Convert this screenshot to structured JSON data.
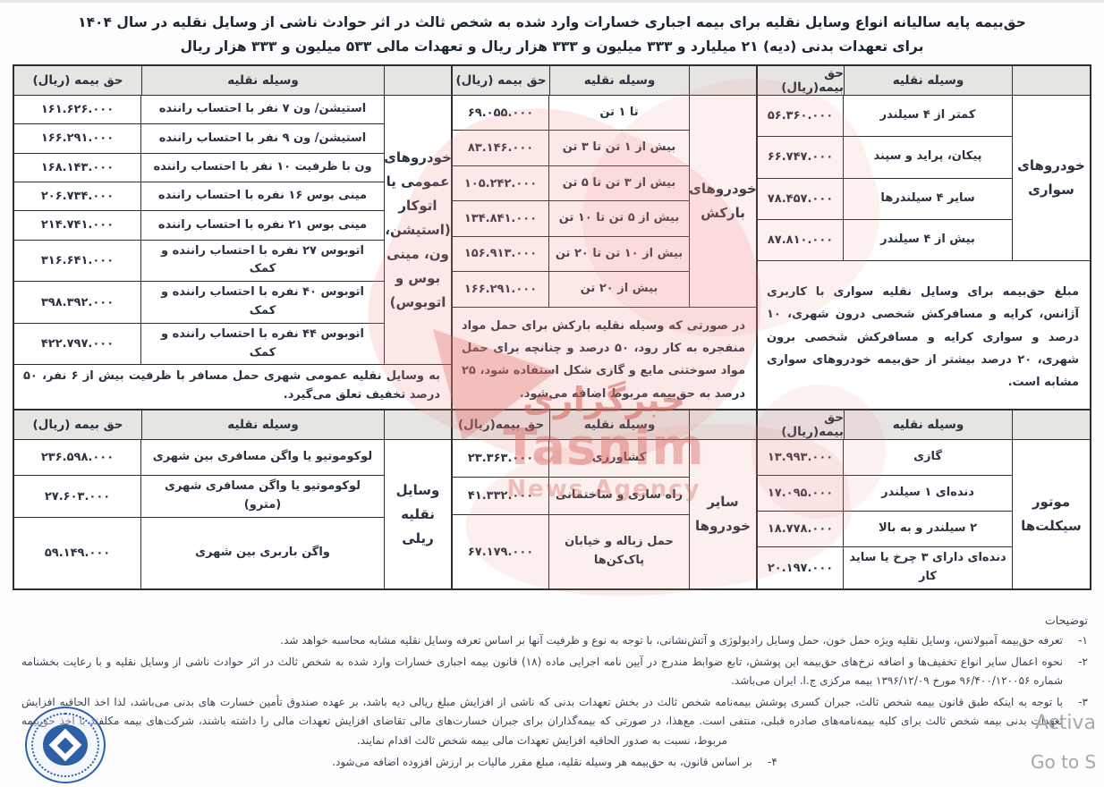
{
  "title": {
    "line1": "حق‌بیمه پایه سالیانه انواع وسایل نقلیه برای بیمه اجباری خسارات وارد شده به شخص ثالث در اثر حوادث ناشی از وسایل نقلیه در سال ۱۴۰۴",
    "line2": "برای تعهدات بدنی (دیه) ۲۱ میلیارد و ۳۳۳ میلیون و ۳۳۳ هزار ریال و تعهدات مالی ۵۳۳ میلیون و ۳۳۳ هزار ریال"
  },
  "table": {
    "upper": {
      "groups": [
        {
          "label": "خودروهای سواری",
          "vehicle_header": "وسیله نقلیه",
          "premium_header": "حق بیمه(ریال)",
          "rows": [
            {
              "vehicle": "کمتر از ۴ سیلندر",
              "premium": "۵۶.۳۶۰.۰۰۰"
            },
            {
              "vehicle": "پیکان، پراید و سپند",
              "premium": "۶۶.۷۴۷.۰۰۰"
            },
            {
              "vehicle": "سایر ۴ سیلندرها",
              "premium": "۷۸.۴۵۷.۰۰۰"
            },
            {
              "vehicle": "بیش از ۴ سیلندر",
              "premium": "۸۷.۸۱۰.۰۰۰"
            }
          ],
          "note": "مبلغ حق‌بیمه برای وسایل نقلیه سواری با کاربری آژانس، کرایه و مسافرکش شخصی درون شهری، ۱۰ درصد و سواری کرایه و مسافرکش شخصی برون شهری، ۲۰ درصد بیشتر از حق‌بیمه خودروهای سواری مشابه است."
        },
        {
          "label": "خودروهای بارکش",
          "vehicle_header": "وسیله نقلیه",
          "premium_header": "حق بیمه (ریال)",
          "rows": [
            {
              "vehicle": "تا ۱ تن",
              "premium": "۶۹.۰۵۵.۰۰۰"
            },
            {
              "vehicle": "بیش از ۱ تن تا ۳ تن",
              "premium": "۸۳.۱۴۶.۰۰۰"
            },
            {
              "vehicle": "بیش از ۳ تن تا ۵ تن",
              "premium": "۱۰۵.۲۴۲.۰۰۰"
            },
            {
              "vehicle": "بیش از ۵ تن تا ۱۰ تن",
              "premium": "۱۳۴.۸۴۱.۰۰۰"
            },
            {
              "vehicle": "بیش از ۱۰ تن تا ۲۰ تن",
              "premium": "۱۵۶.۹۱۳.۰۰۰"
            },
            {
              "vehicle": "بیش از ۲۰ تن",
              "premium": "۱۶۶.۲۹۱.۰۰۰"
            }
          ],
          "note": "در صورتی که وسیله نقلیه بارکش برای حمل مواد منفجره به کار رود، ۵۰ درصد و چنانچه برای حمل مواد سوختنی مایع و گازی شکل استفاده شود، ۲۵ درصد به حق‌بیمه مربوط اضافه می‌شود."
        },
        {
          "label": "خودروهای عمومی یا اتوکار (استیشن، ون، مینی بوس و اتوبوس)",
          "vehicle_header": "وسیله نقلیه",
          "premium_header": "حق بیمه (ریال)",
          "rows": [
            {
              "vehicle": "استیشن/ ون ۷ نفر با احتساب راننده",
              "premium": "۱۶۱.۶۲۶.۰۰۰"
            },
            {
              "vehicle": "استیشن/ ون ۹ نفر با احتساب راننده",
              "premium": "۱۶۶.۲۹۱.۰۰۰"
            },
            {
              "vehicle": "ون با ظرفیت ۱۰ نفر با احتساب راننده",
              "premium": "۱۶۸.۱۴۳.۰۰۰"
            },
            {
              "vehicle": "مینی بوس ۱۶ نفره با احتساب راننده",
              "premium": "۲۰۶.۷۳۴.۰۰۰"
            },
            {
              "vehicle": "مینی بوس ۲۱ نفره با احتساب راننده",
              "premium": "۲۱۴.۷۴۱.۰۰۰"
            },
            {
              "vehicle": "اتوبوس ۲۷ نفره با احتساب راننده و کمک",
              "premium": "۳۱۶.۶۴۱.۰۰۰"
            },
            {
              "vehicle": "اتوبوس ۴۰ نفره با احتساب راننده و کمک",
              "premium": "۳۹۸.۳۹۲.۰۰۰"
            },
            {
              "vehicle": "اتوبوس ۴۴ نفره با احتساب راننده و کمک",
              "premium": "۴۲۲.۷۹۷.۰۰۰"
            }
          ],
          "note": "به وسایل نقلیه عمومی شهری حمل مسافر با ظرفیت بیش از ۶ نفر، ۵۰ درصد تخفیف تعلق می‌گیرد."
        }
      ]
    },
    "lower": {
      "groups": [
        {
          "label": "موتور سیکلت‌ها",
          "vehicle_header": "وسیله نقلیه",
          "premium_header": "حق بیمه(ریال)",
          "rows": [
            {
              "vehicle": "گازی",
              "premium": "۱۳.۹۹۳.۰۰۰"
            },
            {
              "vehicle": "دنده‌ای ۱ سیلندر",
              "premium": "۱۷.۰۹۵.۰۰۰"
            },
            {
              "vehicle": "۲ سیلندر و به بالا",
              "premium": "۱۸.۷۷۸.۰۰۰"
            },
            {
              "vehicle": "دنده‌ای دارای ۳ چرخ یا ساید کار",
              "premium": "۲۰.۱۹۷.۰۰۰"
            }
          ]
        },
        {
          "label": "سایر خودروها",
          "vehicle_header": "وسیله نقلیه",
          "premium_header": "حق بیمه(ریال)",
          "rows": [
            {
              "vehicle": "کشاورزی",
              "premium": "۲۳.۳۶۳.۰۰۰"
            },
            {
              "vehicle": "راه سازی و ساختمانی",
              "premium": "۴۱.۳۳۲.۰۰۰"
            },
            {
              "vehicle": "حمل زباله و خیابان پاک‌کن‌ها",
              "premium": "۶۷.۱۷۹.۰۰۰"
            }
          ]
        },
        {
          "label": "وسایل نقلیه ریلی",
          "vehicle_header": "وسیله نقلیه",
          "premium_header": "حق بیمه (ریال)",
          "rows": [
            {
              "vehicle": "لوکوموتیو یا واگن مسافری بین شهری",
              "premium": "۲۳۶.۵۹۸.۰۰۰"
            },
            {
              "vehicle": "لوکوموتیو یا واگن مسافری شهری (مترو)",
              "premium": "۲۷.۶۰۳.۰۰۰"
            },
            {
              "vehicle": "واگن باربری بین شهری",
              "premium": "۵۹.۱۴۹.۰۰۰"
            }
          ]
        }
      ]
    }
  },
  "footnotes": {
    "heading": "توضیحات",
    "items": [
      {
        "num": "۱-",
        "text": "تعرفه حق‌بیمه آمبولانس، وسایل نقلیه ویژه حمل خون، حمل وسایل رادیولوژی و آتش‌نشانی، با توجه به نوع و ظرفیت آنها بر اساس تعرفه وسایل نقلیه مشابه محاسبه خواهد شد."
      },
      {
        "num": "۲-",
        "text": "نحوه اعمال سایر انواع تخفیف‌ها و اضافه نرخ‌های حق‌بیمه این پوشش، تابع ضوابط مندرج در آیین نامه اجرایی ماده (۱۸) قانون بیمه اجباری خسارات وارد شده به شخص ثالث در اثر حوادث ناشی از وسایل نقلیه و با رعایت بخشنامه شماره ۹۶/۴۰۰/۱۲۰۰۵۶ مورخ ۱۳۹۶/۱۲/۰۹ بیمه مرکزی ج.ا. ایران می‌باشد."
      },
      {
        "num": "۳-",
        "text": "با توجه به اینکه طبق قانون بیمه شخص ثالث، جبران کسری پوشش بیمه‌نامه شخص ثالث در بخش تعهدات بدنی که ناشی از افزایش مبلغ ریالی دیه باشد، بر عهده صندوق تأمین خسارت های بدنی می‌باشد، لذا اخذ الحاقیه افزایش تعهدات بدنی بیمه شخص ثالث برای کلیه بیمه‌نامه‌های صادره قبلی، منتفی است. مع‌هذا، در صورتی که بیمه‌گذاران برای جبران خسارت‌های مالی تقاضای افزایش تعهدات مالی را داشته باشند، شرکت‌های بیمه مکلفند با اخذ حق‌بیمه مربوط، نسبت به صدور الحاقیه افزایش تعهدات مالی بیمه شخص ثالث اقدام نمایند."
      },
      {
        "num": "۴-",
        "text": "بر اساس قانون، به حق‌بیمه هر وسیله نقلیه، مبلغ مقرر مالیات بر ارزش افزوده اضافه می‌شود."
      }
    ]
  },
  "watermark": {
    "line_fa": "خبرگزاری",
    "line_en": "Tasnim",
    "line_sub": "News Agency"
  },
  "activation": {
    "line1": "Activa",
    "line2": "Go to S"
  },
  "colors": {
    "border": "#2e2e2e",
    "header_bg": "#e7e5e2",
    "text": "#2b3340",
    "watermark_pink": "#e8837d",
    "seal_blue": "#2d5fa6"
  }
}
